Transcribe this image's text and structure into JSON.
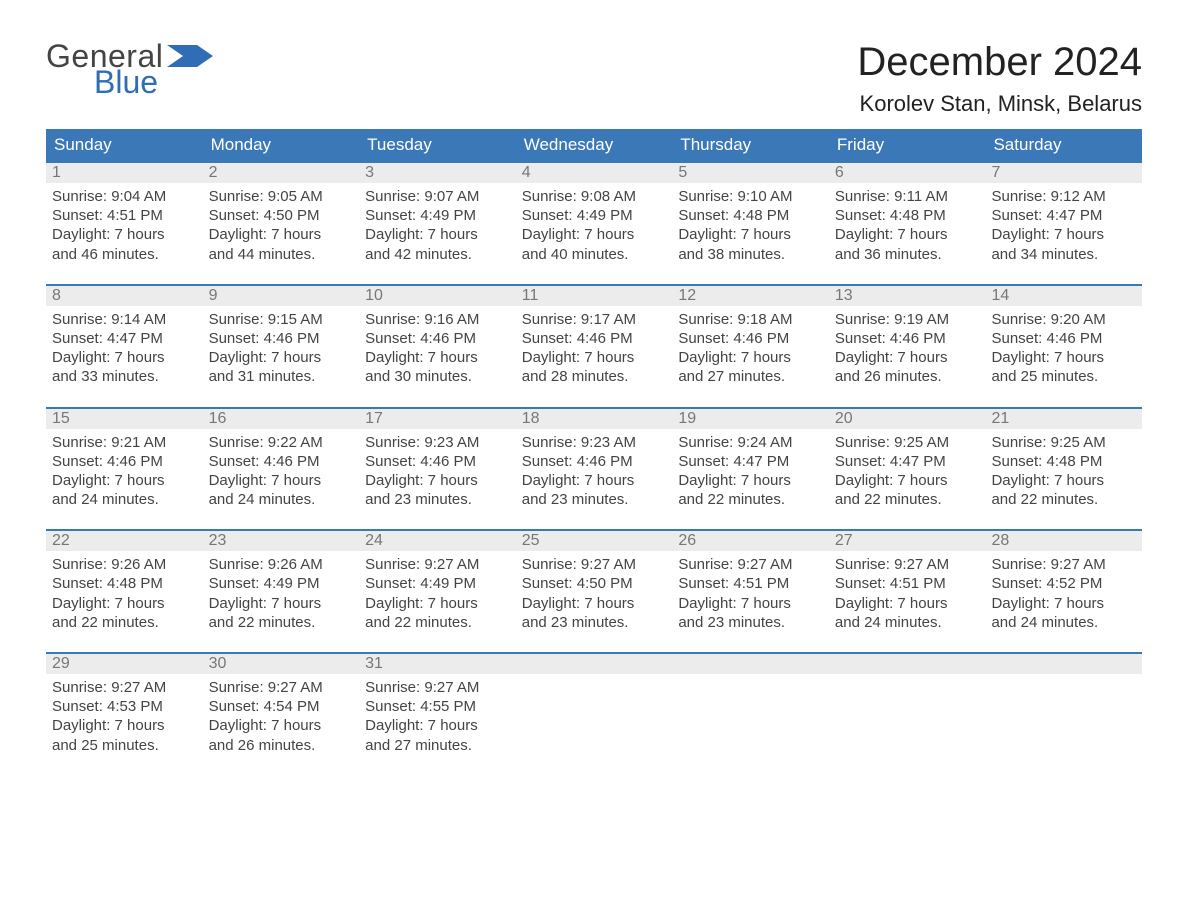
{
  "brand": {
    "word1": "General",
    "word2": "Blue",
    "flag_color": "#2f6eb5"
  },
  "title": "December 2024",
  "location": "Korolev Stan, Minsk, Belarus",
  "colors": {
    "header_bg": "#3b78b8",
    "header_text": "#ffffff",
    "daynum_bg": "#ececec",
    "daynum_text": "#777777",
    "body_text": "#444444",
    "week_border": "#3b78b8",
    "page_bg": "#ffffff"
  },
  "fonts": {
    "title_size": 40,
    "location_size": 22,
    "header_size": 17,
    "body_size": 15
  },
  "day_headers": [
    "Sunday",
    "Monday",
    "Tuesday",
    "Wednesday",
    "Thursday",
    "Friday",
    "Saturday"
  ],
  "weeks": [
    [
      {
        "n": "1",
        "sr": "Sunrise: 9:04 AM",
        "ss": "Sunset: 4:51 PM",
        "d1": "Daylight: 7 hours",
        "d2": "and 46 minutes."
      },
      {
        "n": "2",
        "sr": "Sunrise: 9:05 AM",
        "ss": "Sunset: 4:50 PM",
        "d1": "Daylight: 7 hours",
        "d2": "and 44 minutes."
      },
      {
        "n": "3",
        "sr": "Sunrise: 9:07 AM",
        "ss": "Sunset: 4:49 PM",
        "d1": "Daylight: 7 hours",
        "d2": "and 42 minutes."
      },
      {
        "n": "4",
        "sr": "Sunrise: 9:08 AM",
        "ss": "Sunset: 4:49 PM",
        "d1": "Daylight: 7 hours",
        "d2": "and 40 minutes."
      },
      {
        "n": "5",
        "sr": "Sunrise: 9:10 AM",
        "ss": "Sunset: 4:48 PM",
        "d1": "Daylight: 7 hours",
        "d2": "and 38 minutes."
      },
      {
        "n": "6",
        "sr": "Sunrise: 9:11 AM",
        "ss": "Sunset: 4:48 PM",
        "d1": "Daylight: 7 hours",
        "d2": "and 36 minutes."
      },
      {
        "n": "7",
        "sr": "Sunrise: 9:12 AM",
        "ss": "Sunset: 4:47 PM",
        "d1": "Daylight: 7 hours",
        "d2": "and 34 minutes."
      }
    ],
    [
      {
        "n": "8",
        "sr": "Sunrise: 9:14 AM",
        "ss": "Sunset: 4:47 PM",
        "d1": "Daylight: 7 hours",
        "d2": "and 33 minutes."
      },
      {
        "n": "9",
        "sr": "Sunrise: 9:15 AM",
        "ss": "Sunset: 4:46 PM",
        "d1": "Daylight: 7 hours",
        "d2": "and 31 minutes."
      },
      {
        "n": "10",
        "sr": "Sunrise: 9:16 AM",
        "ss": "Sunset: 4:46 PM",
        "d1": "Daylight: 7 hours",
        "d2": "and 30 minutes."
      },
      {
        "n": "11",
        "sr": "Sunrise: 9:17 AM",
        "ss": "Sunset: 4:46 PM",
        "d1": "Daylight: 7 hours",
        "d2": "and 28 minutes."
      },
      {
        "n": "12",
        "sr": "Sunrise: 9:18 AM",
        "ss": "Sunset: 4:46 PM",
        "d1": "Daylight: 7 hours",
        "d2": "and 27 minutes."
      },
      {
        "n": "13",
        "sr": "Sunrise: 9:19 AM",
        "ss": "Sunset: 4:46 PM",
        "d1": "Daylight: 7 hours",
        "d2": "and 26 minutes."
      },
      {
        "n": "14",
        "sr": "Sunrise: 9:20 AM",
        "ss": "Sunset: 4:46 PM",
        "d1": "Daylight: 7 hours",
        "d2": "and 25 minutes."
      }
    ],
    [
      {
        "n": "15",
        "sr": "Sunrise: 9:21 AM",
        "ss": "Sunset: 4:46 PM",
        "d1": "Daylight: 7 hours",
        "d2": "and 24 minutes."
      },
      {
        "n": "16",
        "sr": "Sunrise: 9:22 AM",
        "ss": "Sunset: 4:46 PM",
        "d1": "Daylight: 7 hours",
        "d2": "and 24 minutes."
      },
      {
        "n": "17",
        "sr": "Sunrise: 9:23 AM",
        "ss": "Sunset: 4:46 PM",
        "d1": "Daylight: 7 hours",
        "d2": "and 23 minutes."
      },
      {
        "n": "18",
        "sr": "Sunrise: 9:23 AM",
        "ss": "Sunset: 4:46 PM",
        "d1": "Daylight: 7 hours",
        "d2": "and 23 minutes."
      },
      {
        "n": "19",
        "sr": "Sunrise: 9:24 AM",
        "ss": "Sunset: 4:47 PM",
        "d1": "Daylight: 7 hours",
        "d2": "and 22 minutes."
      },
      {
        "n": "20",
        "sr": "Sunrise: 9:25 AM",
        "ss": "Sunset: 4:47 PM",
        "d1": "Daylight: 7 hours",
        "d2": "and 22 minutes."
      },
      {
        "n": "21",
        "sr": "Sunrise: 9:25 AM",
        "ss": "Sunset: 4:48 PM",
        "d1": "Daylight: 7 hours",
        "d2": "and 22 minutes."
      }
    ],
    [
      {
        "n": "22",
        "sr": "Sunrise: 9:26 AM",
        "ss": "Sunset: 4:48 PM",
        "d1": "Daylight: 7 hours",
        "d2": "and 22 minutes."
      },
      {
        "n": "23",
        "sr": "Sunrise: 9:26 AM",
        "ss": "Sunset: 4:49 PM",
        "d1": "Daylight: 7 hours",
        "d2": "and 22 minutes."
      },
      {
        "n": "24",
        "sr": "Sunrise: 9:27 AM",
        "ss": "Sunset: 4:49 PM",
        "d1": "Daylight: 7 hours",
        "d2": "and 22 minutes."
      },
      {
        "n": "25",
        "sr": "Sunrise: 9:27 AM",
        "ss": "Sunset: 4:50 PM",
        "d1": "Daylight: 7 hours",
        "d2": "and 23 minutes."
      },
      {
        "n": "26",
        "sr": "Sunrise: 9:27 AM",
        "ss": "Sunset: 4:51 PM",
        "d1": "Daylight: 7 hours",
        "d2": "and 23 minutes."
      },
      {
        "n": "27",
        "sr": "Sunrise: 9:27 AM",
        "ss": "Sunset: 4:51 PM",
        "d1": "Daylight: 7 hours",
        "d2": "and 24 minutes."
      },
      {
        "n": "28",
        "sr": "Sunrise: 9:27 AM",
        "ss": "Sunset: 4:52 PM",
        "d1": "Daylight: 7 hours",
        "d2": "and 24 minutes."
      }
    ],
    [
      {
        "n": "29",
        "sr": "Sunrise: 9:27 AM",
        "ss": "Sunset: 4:53 PM",
        "d1": "Daylight: 7 hours",
        "d2": "and 25 minutes."
      },
      {
        "n": "30",
        "sr": "Sunrise: 9:27 AM",
        "ss": "Sunset: 4:54 PM",
        "d1": "Daylight: 7 hours",
        "d2": "and 26 minutes."
      },
      {
        "n": "31",
        "sr": "Sunrise: 9:27 AM",
        "ss": "Sunset: 4:55 PM",
        "d1": "Daylight: 7 hours",
        "d2": "and 27 minutes."
      },
      {
        "empty": true
      },
      {
        "empty": true
      },
      {
        "empty": true
      },
      {
        "empty": true
      }
    ]
  ]
}
